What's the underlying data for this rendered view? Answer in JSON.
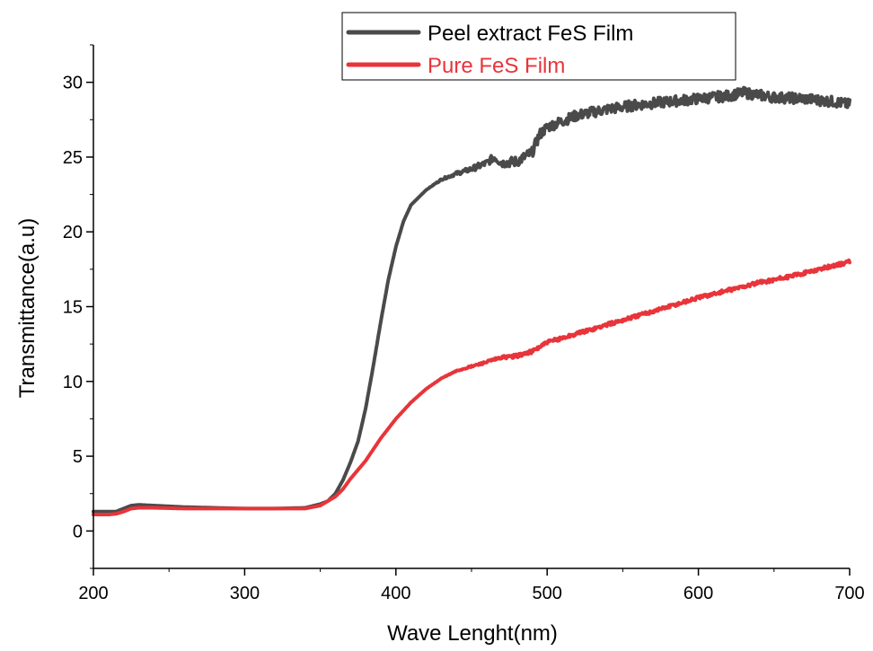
{
  "chart_data": {
    "type": "line",
    "title": "",
    "xlabel": "Wave Lenght(nm)",
    "ylabel": "Transmittance(a.u)",
    "xlim": [
      200,
      700
    ],
    "ylim": [
      -2.5,
      32.5
    ],
    "xticks": [
      200,
      300,
      400,
      500,
      600,
      700
    ],
    "yticks": [
      0,
      5,
      10,
      15,
      20,
      25,
      30
    ],
    "grid": false,
    "legend_position": "top-right",
    "series": [
      {
        "name": "Peel extract FeS Film",
        "color": "#4a4a4a",
        "noise": 0.35,
        "points": [
          [
            200,
            1.3
          ],
          [
            210,
            1.3
          ],
          [
            215,
            1.3
          ],
          [
            220,
            1.5
          ],
          [
            225,
            1.7
          ],
          [
            230,
            1.75
          ],
          [
            240,
            1.7
          ],
          [
            260,
            1.6
          ],
          [
            280,
            1.55
          ],
          [
            300,
            1.5
          ],
          [
            320,
            1.5
          ],
          [
            340,
            1.55
          ],
          [
            350,
            1.8
          ],
          [
            355,
            2.0
          ],
          [
            360,
            2.5
          ],
          [
            365,
            3.4
          ],
          [
            370,
            4.6
          ],
          [
            375,
            6.0
          ],
          [
            380,
            8.2
          ],
          [
            385,
            11.0
          ],
          [
            390,
            14.0
          ],
          [
            395,
            16.8
          ],
          [
            400,
            19.0
          ],
          [
            405,
            20.7
          ],
          [
            410,
            21.8
          ],
          [
            420,
            22.8
          ],
          [
            430,
            23.5
          ],
          [
            440,
            23.9
          ],
          [
            450,
            24.2
          ],
          [
            460,
            24.6
          ],
          [
            465,
            25.0
          ],
          [
            470,
            24.6
          ],
          [
            480,
            24.7
          ],
          [
            490,
            25.3
          ],
          [
            495,
            26.5
          ],
          [
            500,
            27.0
          ],
          [
            510,
            27.4
          ],
          [
            520,
            27.8
          ],
          [
            540,
            28.2
          ],
          [
            560,
            28.5
          ],
          [
            580,
            28.7
          ],
          [
            600,
            28.9
          ],
          [
            620,
            29.1
          ],
          [
            630,
            29.3
          ],
          [
            650,
            29.0
          ],
          [
            670,
            28.9
          ],
          [
            690,
            28.7
          ],
          [
            700,
            28.5
          ]
        ]
      },
      {
        "name": "Pure FeS Film",
        "color": "#e8343a",
        "noise": 0.12,
        "points": [
          [
            200,
            1.1
          ],
          [
            210,
            1.1
          ],
          [
            215,
            1.15
          ],
          [
            220,
            1.3
          ],
          [
            225,
            1.5
          ],
          [
            230,
            1.55
          ],
          [
            240,
            1.55
          ],
          [
            260,
            1.5
          ],
          [
            280,
            1.5
          ],
          [
            300,
            1.5
          ],
          [
            320,
            1.5
          ],
          [
            340,
            1.5
          ],
          [
            350,
            1.7
          ],
          [
            360,
            2.3
          ],
          [
            365,
            2.8
          ],
          [
            370,
            3.5
          ],
          [
            380,
            4.7
          ],
          [
            390,
            6.2
          ],
          [
            400,
            7.5
          ],
          [
            410,
            8.6
          ],
          [
            420,
            9.5
          ],
          [
            430,
            10.2
          ],
          [
            440,
            10.7
          ],
          [
            450,
            11.0
          ],
          [
            460,
            11.3
          ],
          [
            470,
            11.6
          ],
          [
            480,
            11.7
          ],
          [
            490,
            12.0
          ],
          [
            500,
            12.6
          ],
          [
            520,
            13.2
          ],
          [
            540,
            13.8
          ],
          [
            560,
            14.4
          ],
          [
            580,
            15.0
          ],
          [
            600,
            15.6
          ],
          [
            620,
            16.1
          ],
          [
            640,
            16.6
          ],
          [
            660,
            17.0
          ],
          [
            680,
            17.5
          ],
          [
            700,
            18.0
          ]
        ]
      }
    ]
  }
}
